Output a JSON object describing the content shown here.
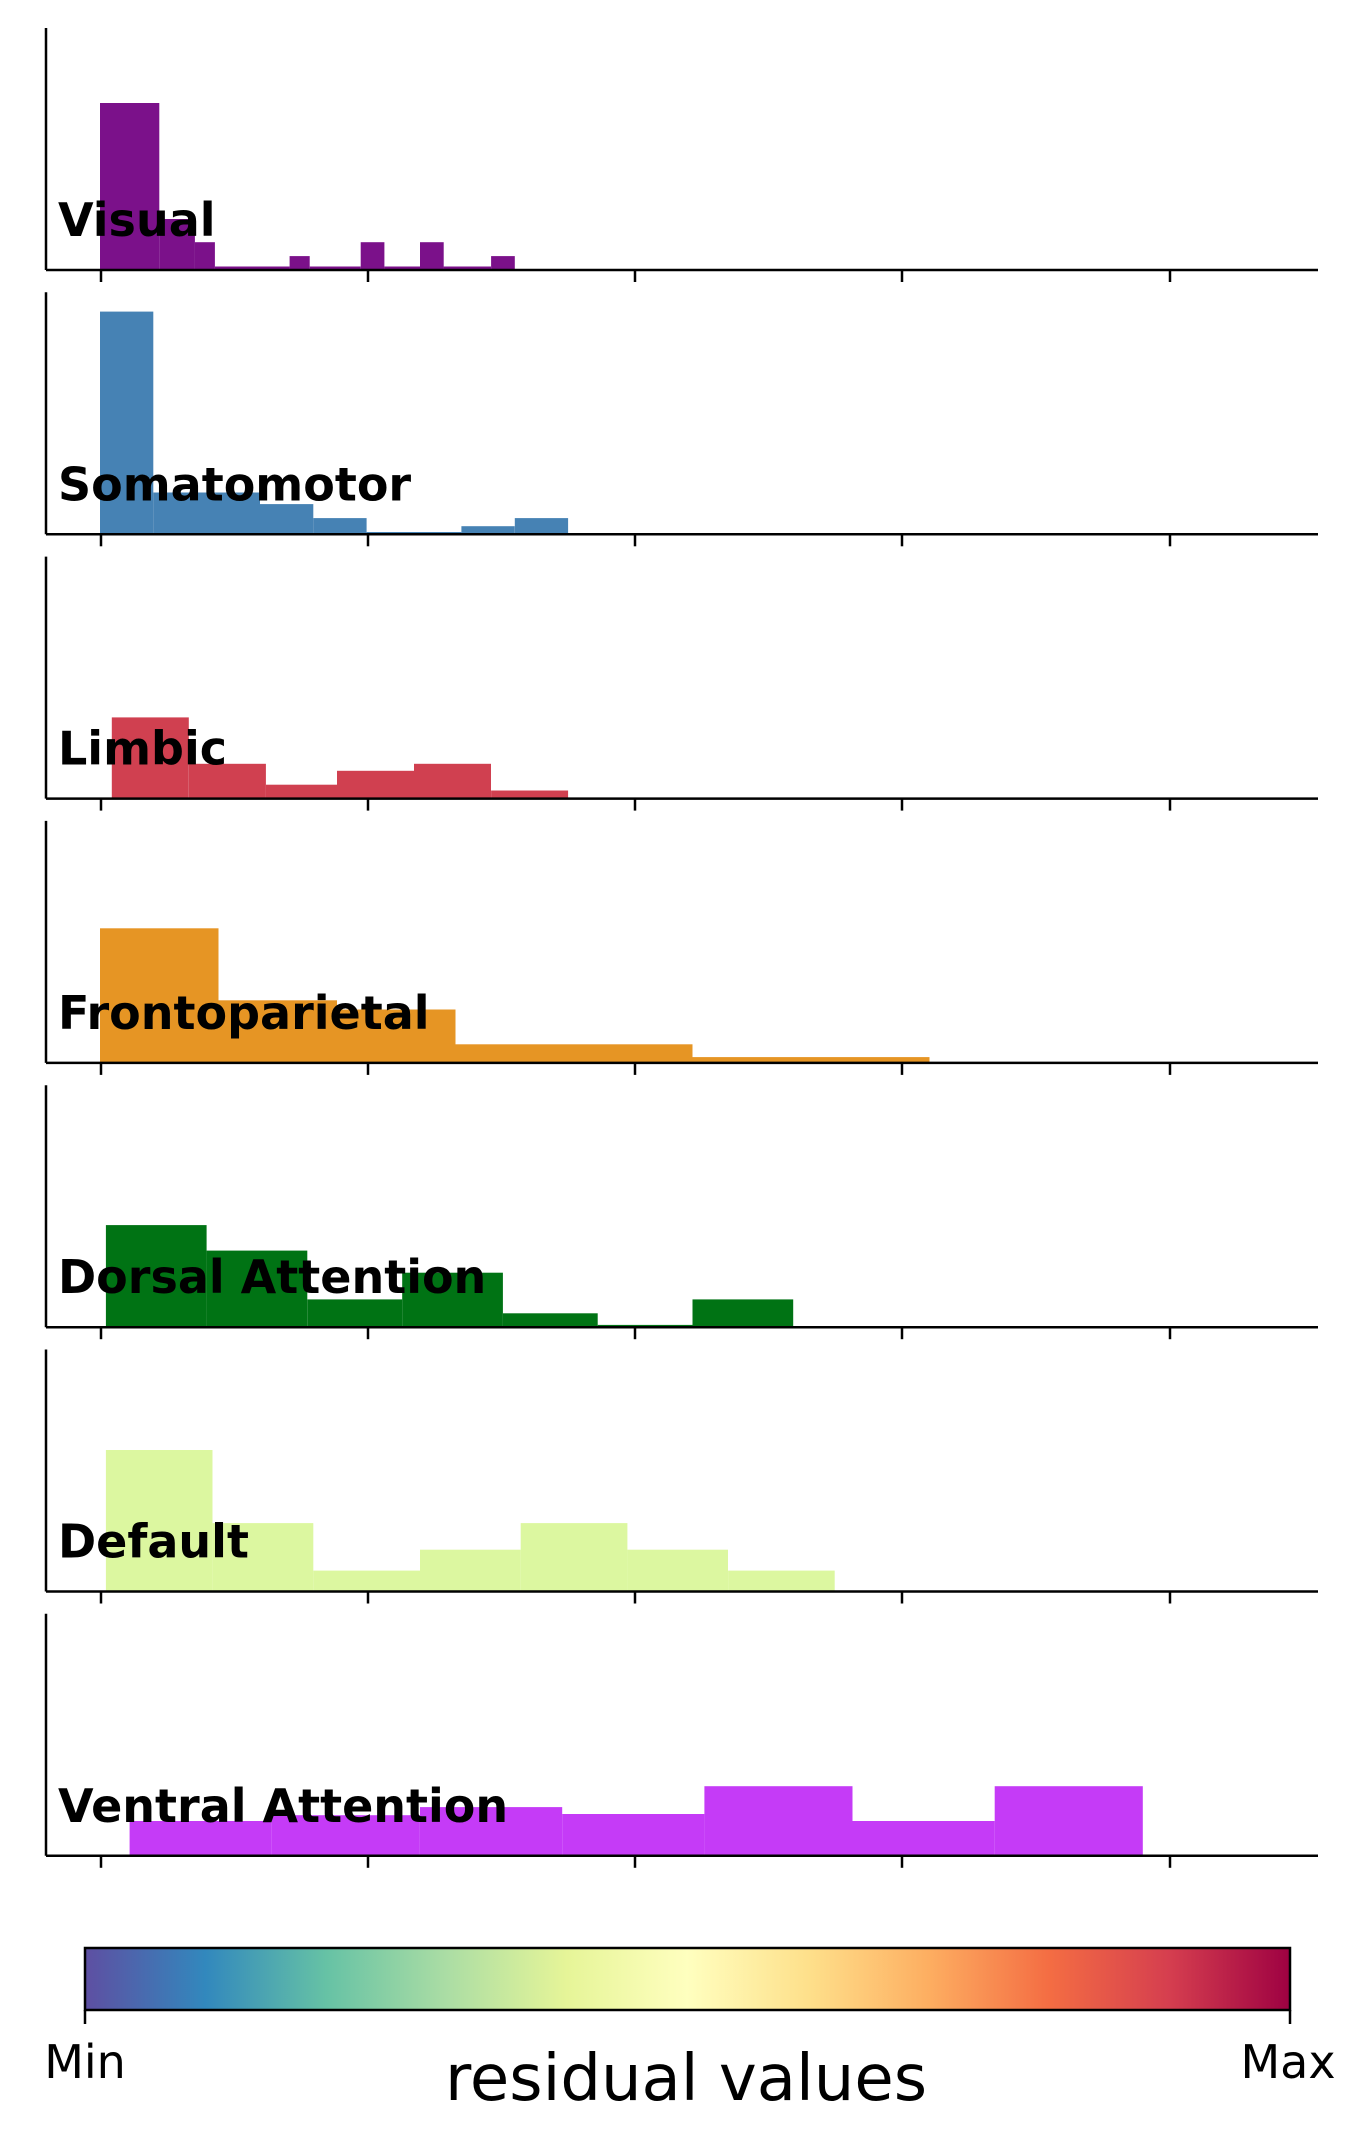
{
  "chart_data": {
    "type": "histogram",
    "x_range": [
      0,
      1
    ],
    "panels": [
      {
        "name": "Visual",
        "color": "#7b118a",
        "ymax": 100,
        "bins": [
          [
            0.0,
            0.05,
            72
          ],
          [
            0.05,
            0.08,
            22
          ],
          [
            0.08,
            0.097,
            12
          ],
          [
            0.097,
            0.16,
            1.5
          ],
          [
            0.16,
            0.177,
            6
          ],
          [
            0.177,
            0.22,
            1.5
          ],
          [
            0.22,
            0.24,
            12
          ],
          [
            0.24,
            0.27,
            1.5
          ],
          [
            0.27,
            0.29,
            12
          ],
          [
            0.29,
            0.33,
            1.5
          ],
          [
            0.33,
            0.35,
            6
          ]
        ]
      },
      {
        "name": "Somatomotor",
        "color": "#4682b4",
        "ymax": 100,
        "bins": [
          [
            0.0,
            0.045,
            96
          ],
          [
            0.045,
            0.135,
            18
          ],
          [
            0.135,
            0.18,
            13
          ],
          [
            0.18,
            0.225,
            7
          ],
          [
            0.225,
            0.305,
            1
          ],
          [
            0.305,
            0.35,
            3.5
          ],
          [
            0.35,
            0.395,
            7
          ]
        ]
      },
      {
        "name": "Limbic",
        "color": "#d04050",
        "ymax": 100,
        "bins": [
          [
            0.01,
            0.075,
            35
          ],
          [
            0.075,
            0.14,
            15
          ],
          [
            0.14,
            0.2,
            6
          ],
          [
            0.2,
            0.265,
            12
          ],
          [
            0.265,
            0.33,
            15
          ],
          [
            0.33,
            0.395,
            3.5
          ]
        ]
      },
      {
        "name": "Frontoparietal",
        "color": "#e69524",
        "ymax": 100,
        "bins": [
          [
            0.0,
            0.1,
            58
          ],
          [
            0.1,
            0.2,
            27
          ],
          [
            0.2,
            0.3,
            23
          ],
          [
            0.3,
            0.5,
            8
          ],
          [
            0.5,
            0.7,
            2.5
          ]
        ]
      },
      {
        "name": "Dorsal Attention",
        "color": "#007314",
        "ymax": 100,
        "bins": [
          [
            0.005,
            0.09,
            44
          ],
          [
            0.09,
            0.175,
            33
          ],
          [
            0.175,
            0.255,
            12
          ],
          [
            0.255,
            0.34,
            23.5
          ],
          [
            0.34,
            0.42,
            6
          ],
          [
            0.42,
            0.5,
            1
          ],
          [
            0.5,
            0.585,
            12
          ]
        ]
      },
      {
        "name": "Default",
        "color": "#dcf7a0",
        "ymax": 100,
        "bins": [
          [
            0.005,
            0.095,
            61
          ],
          [
            0.095,
            0.18,
            29.5
          ],
          [
            0.18,
            0.27,
            9
          ],
          [
            0.27,
            0.355,
            18
          ],
          [
            0.355,
            0.445,
            29.5
          ],
          [
            0.445,
            0.53,
            18
          ],
          [
            0.53,
            0.62,
            9
          ]
        ]
      },
      {
        "name": "Ventral Attention",
        "color": "#c53bf7",
        "ymax": 100,
        "bins": [
          [
            0.025,
            0.145,
            15
          ],
          [
            0.145,
            0.27,
            17.5
          ],
          [
            0.27,
            0.39,
            21
          ],
          [
            0.39,
            0.51,
            18
          ],
          [
            0.51,
            0.635,
            30
          ],
          [
            0.635,
            0.755,
            15
          ],
          [
            0.755,
            0.88,
            30
          ]
        ]
      }
    ],
    "colorbar": {
      "colormap": [
        "#5e4fa2",
        "#3288bd",
        "#66c2a5",
        "#abdda4",
        "#e6f598",
        "#ffffbf",
        "#fee08b",
        "#fdae61",
        "#f46d43",
        "#d53e4f",
        "#9e0142"
      ],
      "min_label": "Min",
      "max_label": "Max",
      "title": "residual values"
    }
  }
}
